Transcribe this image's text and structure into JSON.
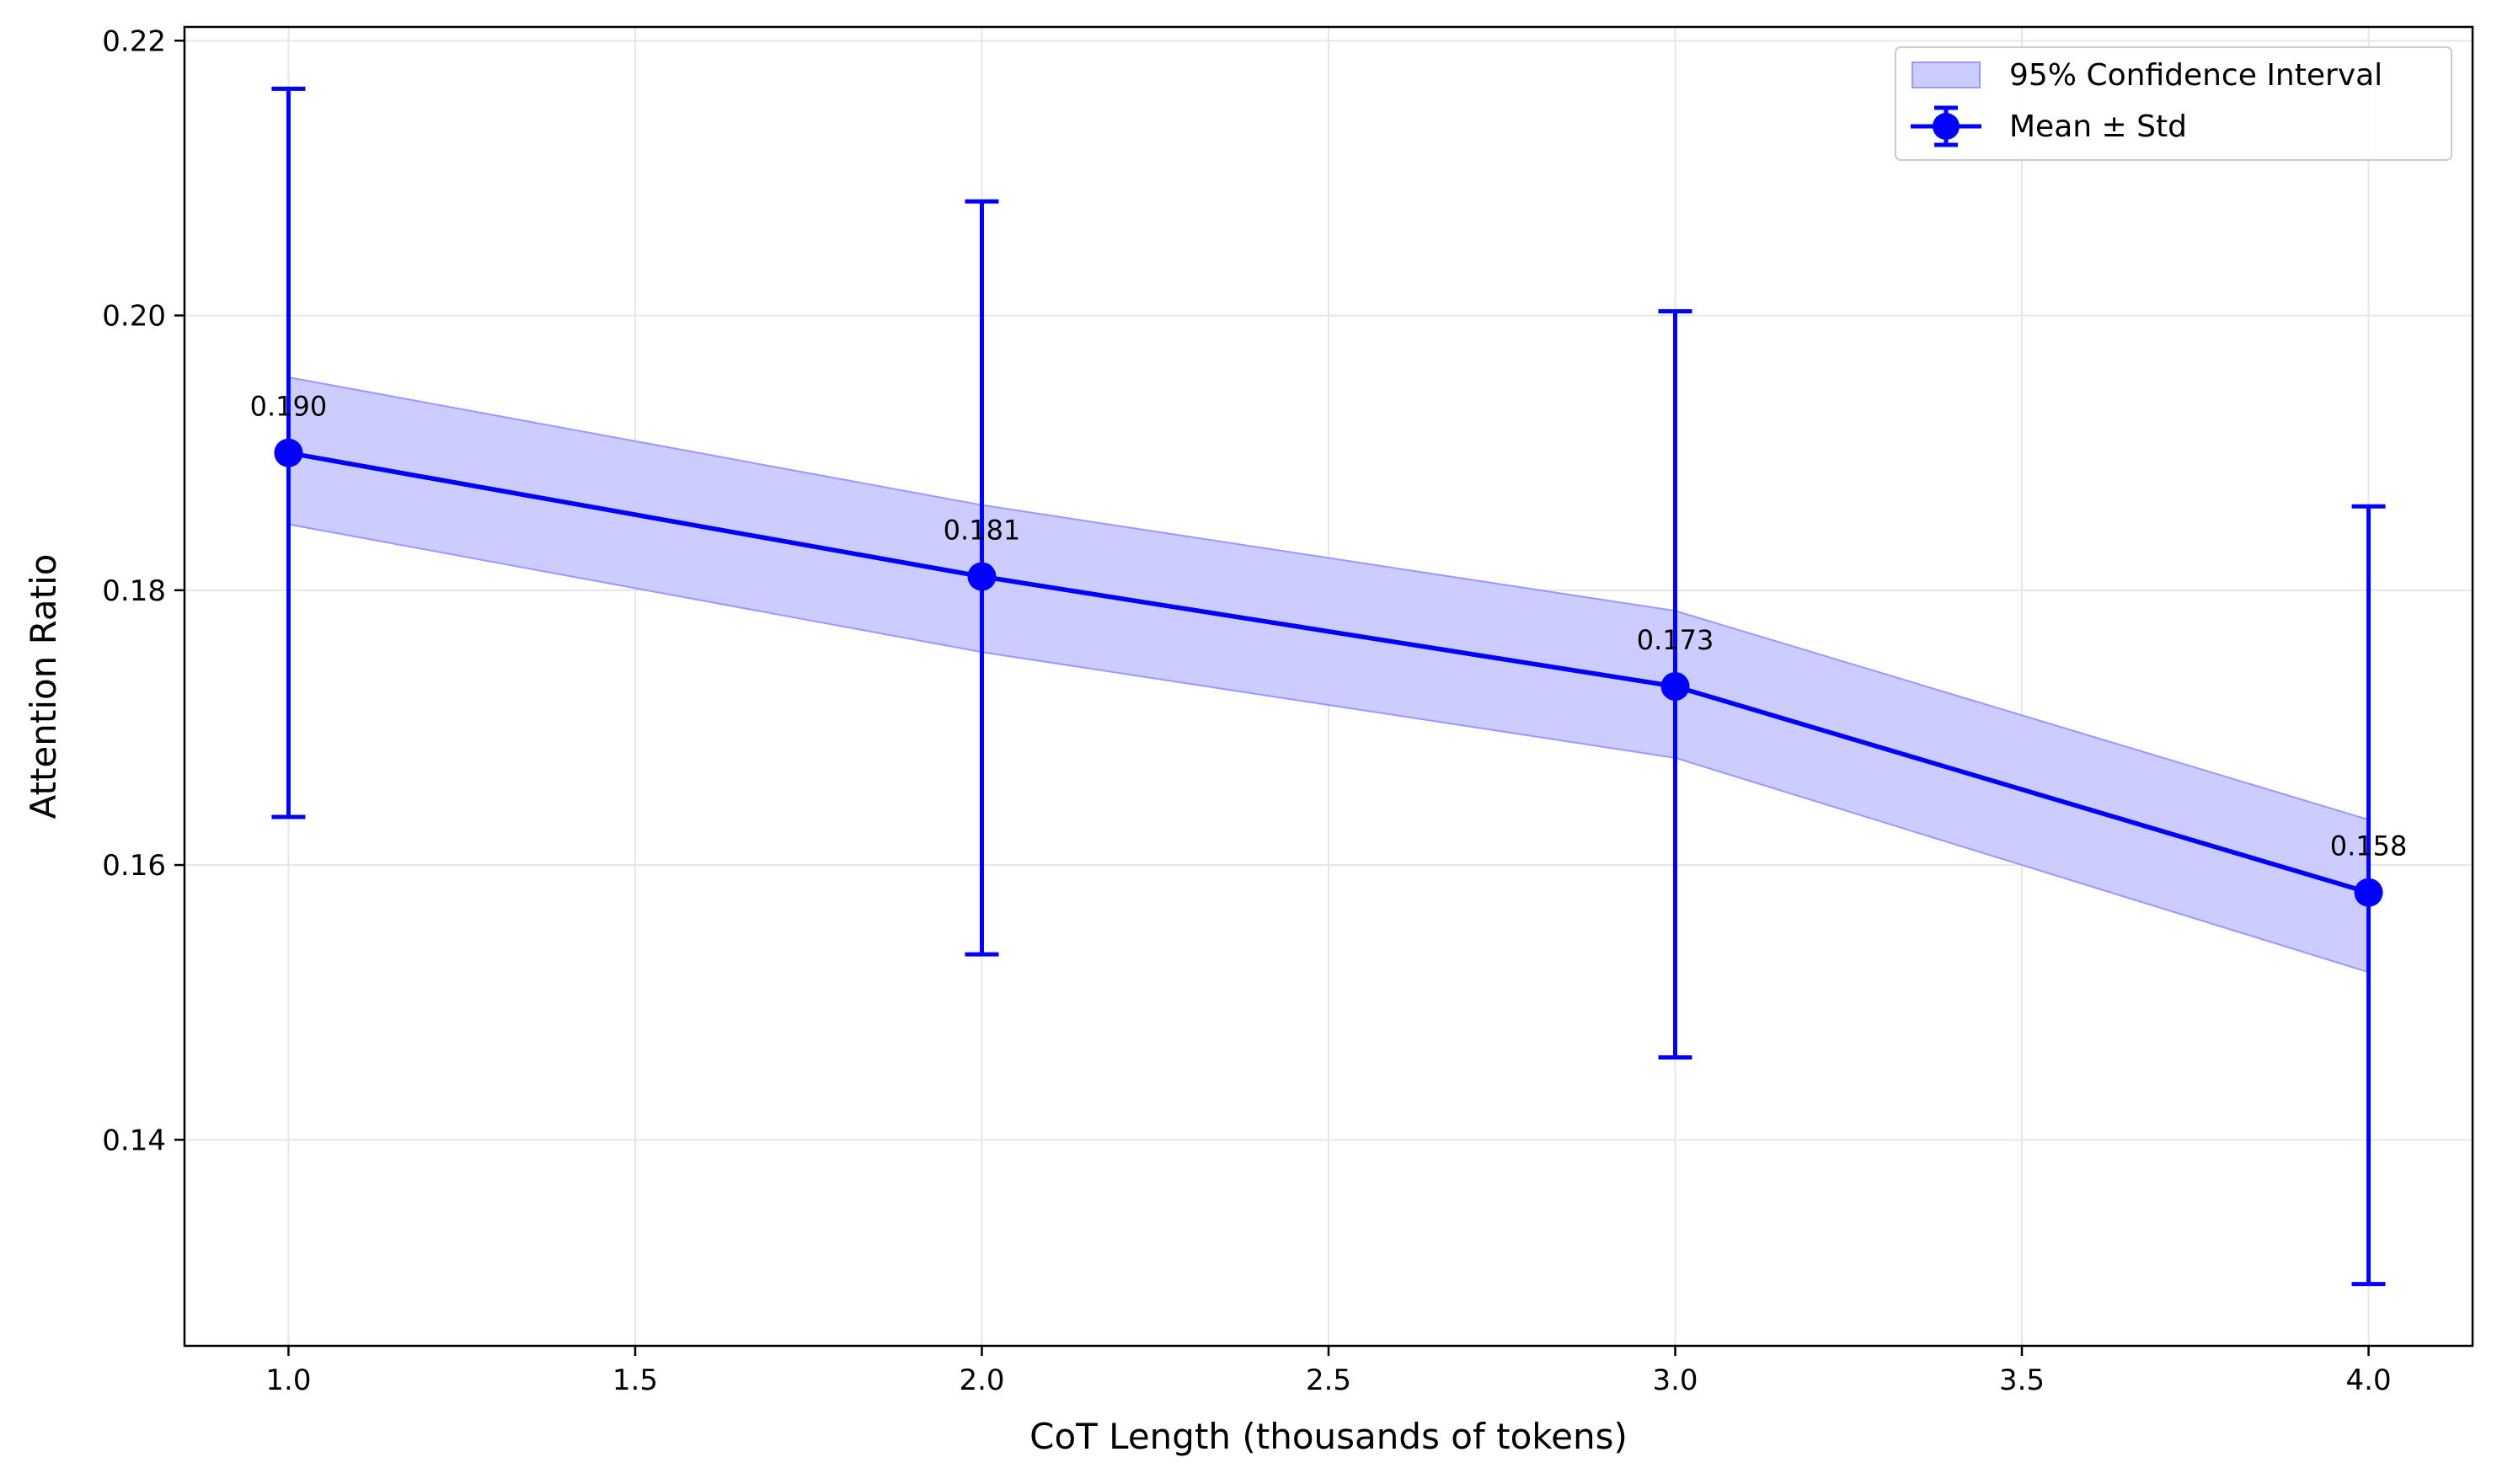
{
  "chart_data": {
    "type": "line",
    "title": "",
    "xlabel": "CoT Length (thousands of tokens)",
    "ylabel": "Attention Ratio",
    "xlim": [
      0.85,
      4.15
    ],
    "ylim": [
      0.125,
      0.221
    ],
    "xticks": [
      1.0,
      1.5,
      2.0,
      2.5,
      3.0,
      3.5,
      4.0
    ],
    "xtick_labels": [
      "1.0",
      "1.5",
      "2.0",
      "2.5",
      "3.0",
      "3.5",
      "4.0"
    ],
    "yticks": [
      0.14,
      0.16,
      0.18,
      0.2,
      0.22
    ],
    "ytick_labels": [
      "0.14",
      "0.16",
      "0.18",
      "0.20",
      "0.22"
    ],
    "grid": true,
    "legend_position": "top-right",
    "color": "#0000ff",
    "band_color": "#ccccff",
    "series": [
      {
        "name": "Mean ± Std",
        "x": [
          1.0,
          2.0,
          3.0,
          4.0
        ],
        "mean": [
          0.19,
          0.181,
          0.173,
          0.158
        ],
        "std_lower": [
          0.1635,
          0.1535,
          0.146,
          0.1295
        ],
        "std_upper": [
          0.2165,
          0.2083,
          0.2003,
          0.1861
        ]
      }
    ],
    "confidence_band": {
      "name": "95% Confidence Interval",
      "x": [
        1.0,
        2.0,
        3.0,
        4.0
      ],
      "lower": [
        0.1848,
        0.1755,
        0.1678,
        0.1522
      ],
      "upper": [
        0.1955,
        0.1862,
        0.1785,
        0.1633
      ]
    },
    "annotations": [
      "0.190",
      "0.181",
      "0.173",
      "0.158"
    ],
    "legend": [
      "95% Confidence Interval",
      "Mean ± Std"
    ]
  }
}
